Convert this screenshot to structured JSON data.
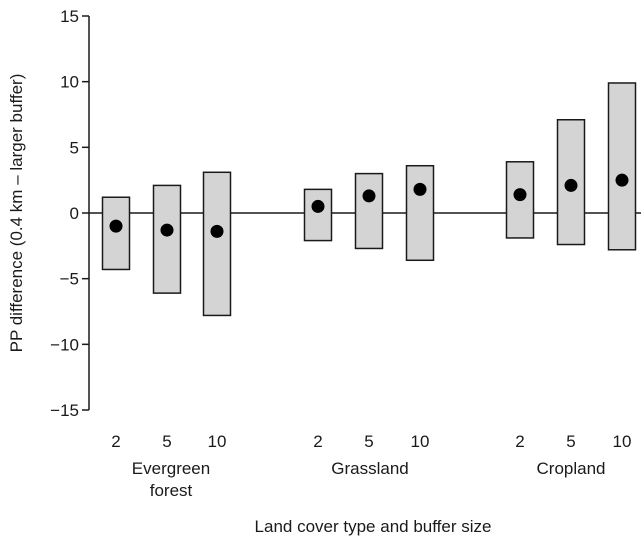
{
  "chart_data": {
    "type": "range-bar-with-points",
    "ylabel": "PP difference (0.4 km – larger buffer)",
    "xlabel": "Land cover type and buffer size",
    "ylim": [
      -15,
      15
    ],
    "yticks": [
      15,
      10,
      5,
      0,
      -5,
      -10,
      -15
    ],
    "yticklabels": [
      "15",
      "10",
      "5",
      "0",
      "−5",
      "−10",
      "−15"
    ],
    "zero_line": true,
    "grid": false,
    "colors": {
      "box_fill": "#d4d4d4",
      "box_stroke": "#1a1a1a",
      "point": "#000000"
    },
    "groups": [
      {
        "label_lines": [
          "Evergreen",
          "forest"
        ],
        "buffers": [
          "2",
          "5",
          "10"
        ],
        "low": [
          -4.3,
          -6.1,
          -7.8
        ],
        "high": [
          1.2,
          2.1,
          3.1
        ],
        "point": [
          -1.0,
          -1.3,
          -1.4
        ]
      },
      {
        "label_lines": [
          "Grassland"
        ],
        "buffers": [
          "2",
          "5",
          "10"
        ],
        "low": [
          -2.1,
          -2.7,
          -3.6
        ],
        "high": [
          1.8,
          3.0,
          3.6
        ],
        "point": [
          0.5,
          1.3,
          1.8
        ]
      },
      {
        "label_lines": [
          "Cropland"
        ],
        "buffers": [
          "2",
          "5",
          "10"
        ],
        "low": [
          -1.9,
          -2.4,
          -2.8
        ],
        "high": [
          3.9,
          7.1,
          9.9
        ],
        "point": [
          1.4,
          2.1,
          2.5
        ]
      }
    ]
  }
}
